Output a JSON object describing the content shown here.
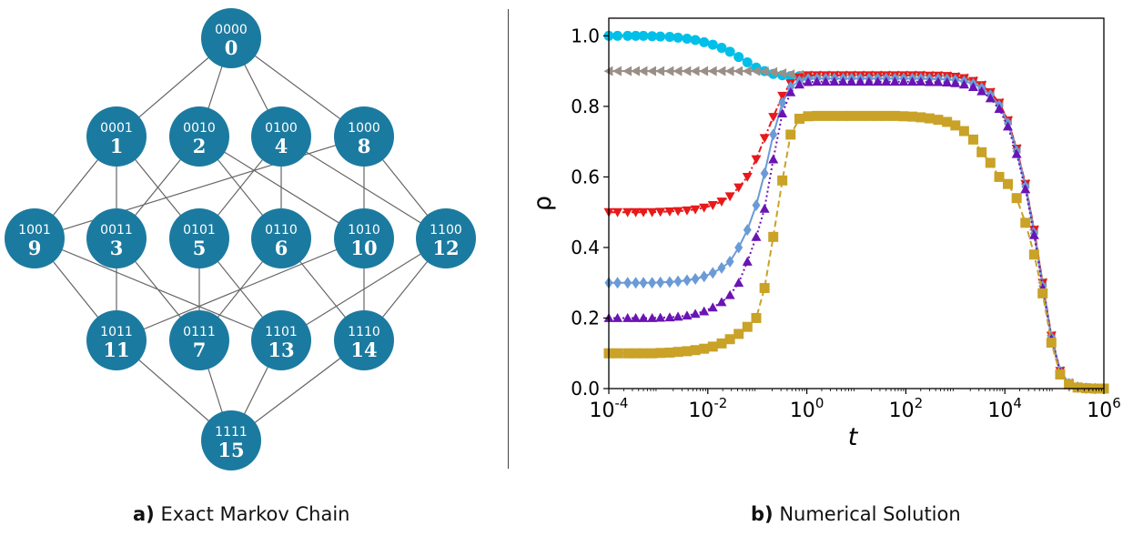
{
  "panel_a": {
    "caption_letter": "a)",
    "caption_text": "Exact Markov Chain",
    "node_color": "#1b7aa0",
    "edge_color": "#666666",
    "nodes": [
      {
        "id": 0,
        "bits": "0000",
        "label": "0"
      },
      {
        "id": 1,
        "bits": "0001",
        "label": "1"
      },
      {
        "id": 2,
        "bits": "0010",
        "label": "2"
      },
      {
        "id": 4,
        "bits": "0100",
        "label": "4"
      },
      {
        "id": 8,
        "bits": "1000",
        "label": "8"
      },
      {
        "id": 9,
        "bits": "1001",
        "label": "9"
      },
      {
        "id": 3,
        "bits": "0011",
        "label": "3"
      },
      {
        "id": 5,
        "bits": "0101",
        "label": "5"
      },
      {
        "id": 6,
        "bits": "0110",
        "label": "6"
      },
      {
        "id": 10,
        "bits": "1010",
        "label": "10"
      },
      {
        "id": 12,
        "bits": "1100",
        "label": "12"
      },
      {
        "id": 11,
        "bits": "1011",
        "label": "11"
      },
      {
        "id": 7,
        "bits": "0111",
        "label": "7"
      },
      {
        "id": 13,
        "bits": "1101",
        "label": "13"
      },
      {
        "id": 14,
        "bits": "1110",
        "label": "14"
      },
      {
        "id": 15,
        "bits": "1111",
        "label": "15"
      }
    ]
  },
  "panel_b": {
    "caption_letter": "b)",
    "caption_text": "Numerical Solution"
  },
  "chart_data": {
    "type": "line",
    "xlabel": "t",
    "ylabel": "ρ",
    "xscale": "log",
    "xlim": [
      0.0001,
      1000000
    ],
    "ylim": [
      0.0,
      1.05
    ],
    "xticks": [
      {
        "value": 0.0001,
        "base": "10",
        "exp": "-4"
      },
      {
        "value": 0.01,
        "base": "10",
        "exp": "-2"
      },
      {
        "value": 1,
        "base": "10",
        "exp": "0"
      },
      {
        "value": 100,
        "base": "10",
        "exp": "2"
      },
      {
        "value": 10000,
        "base": "10",
        "exp": "4"
      },
      {
        "value": 1000000,
        "base": "10",
        "exp": "6"
      }
    ],
    "yticks": [
      "0.0",
      "0.2",
      "0.4",
      "0.6",
      "0.8",
      "1.0"
    ],
    "grid": false,
    "series": [
      {
        "color": "#00bfe8",
        "marker": "circle",
        "line": "solid",
        "x": [
          0.0001,
          0.00015,
          0.00024,
          0.00035,
          0.0005,
          0.00075,
          0.0011,
          0.0017,
          0.0025,
          0.0038,
          0.0056,
          0.0084,
          0.0126,
          0.019,
          0.028,
          0.042,
          0.063,
          0.095,
          0.14,
          0.21,
          0.32,
          0.47,
          0.71,
          1.06
        ],
        "y": [
          1.0,
          1.0,
          1.0,
          1.0,
          1.0,
          0.999,
          0.998,
          0.997,
          0.995,
          0.992,
          0.988,
          0.982,
          0.975,
          0.966,
          0.955,
          0.94,
          0.925,
          0.91,
          0.9,
          0.892,
          0.888,
          0.886,
          0.886,
          0.885
        ]
      },
      {
        "color": "#9a8f87",
        "marker": "triangle-left",
        "line": "solid",
        "x": [
          0.0001,
          0.00015,
          0.00024,
          0.00035,
          0.0005,
          0.00075,
          0.0011,
          0.0017,
          0.0025,
          0.0038,
          0.0056,
          0.0084,
          0.0126,
          0.019,
          0.028,
          0.042,
          0.063,
          0.095,
          0.14,
          0.21,
          0.32,
          0.47,
          0.71,
          1.06,
          1.6,
          2.4,
          3.6,
          5.4,
          8,
          12,
          18,
          27,
          40,
          60,
          90,
          135,
          200,
          300,
          450,
          680,
          1000,
          1500,
          2300,
          3400,
          5100,
          7700,
          11500,
          17300,
          26000,
          39000,
          58000,
          87000,
          131000,
          197000,
          295000,
          440000,
          660000,
          1000000
        ],
        "y": [
          0.9,
          0.9,
          0.9,
          0.9,
          0.9,
          0.9,
          0.9,
          0.9,
          0.9,
          0.9,
          0.9,
          0.9,
          0.9,
          0.9,
          0.9,
          0.9,
          0.9,
          0.9,
          0.899,
          0.897,
          0.894,
          0.891,
          0.889,
          0.888,
          0.888,
          0.888,
          0.888,
          0.888,
          0.888,
          0.888,
          0.888,
          0.888,
          0.888,
          0.888,
          0.888,
          0.888,
          0.888,
          0.887,
          0.887,
          0.886,
          0.884,
          0.88,
          0.872,
          0.86,
          0.84,
          0.81,
          0.76,
          0.68,
          0.58,
          0.45,
          0.3,
          0.15,
          0.05,
          0.015,
          0.004,
          0.001,
          0.0,
          0.0
        ]
      },
      {
        "color": "#e8191a",
        "marker": "triangle-down",
        "line": "dashdot",
        "x": [
          0.0001,
          0.00015,
          0.00024,
          0.00035,
          0.0005,
          0.00075,
          0.0011,
          0.0017,
          0.0025,
          0.0038,
          0.0056,
          0.0084,
          0.0126,
          0.019,
          0.028,
          0.042,
          0.063,
          0.095,
          0.14,
          0.21,
          0.32,
          0.47,
          0.71,
          1.06,
          1.6,
          2.4,
          3.6,
          5.4,
          8,
          12,
          18,
          27,
          40,
          60,
          90,
          135,
          200,
          300,
          450,
          680,
          1000,
          1500,
          2300,
          3400,
          5100,
          7700,
          11500,
          17300,
          26000,
          39000,
          58000,
          87000,
          131000,
          197000,
          295000,
          440000,
          660000,
          1000000
        ],
        "y": [
          0.5,
          0.5,
          0.5,
          0.5,
          0.5,
          0.5,
          0.501,
          0.502,
          0.503,
          0.505,
          0.508,
          0.513,
          0.52,
          0.53,
          0.545,
          0.57,
          0.6,
          0.65,
          0.71,
          0.77,
          0.83,
          0.865,
          0.882,
          0.888,
          0.888,
          0.888,
          0.888,
          0.888,
          0.888,
          0.888,
          0.888,
          0.888,
          0.888,
          0.888,
          0.888,
          0.888,
          0.888,
          0.887,
          0.887,
          0.886,
          0.884,
          0.88,
          0.872,
          0.86,
          0.84,
          0.81,
          0.76,
          0.68,
          0.58,
          0.45,
          0.3,
          0.15,
          0.05,
          0.015,
          0.004,
          0.001,
          0.0,
          0.0
        ]
      },
      {
        "color": "#6b9bd6",
        "marker": "diamond",
        "line": "solid",
        "x": [
          0.0001,
          0.00015,
          0.00024,
          0.00035,
          0.0005,
          0.00075,
          0.0011,
          0.0017,
          0.0025,
          0.0038,
          0.0056,
          0.0084,
          0.0126,
          0.019,
          0.028,
          0.042,
          0.063,
          0.095,
          0.14,
          0.21,
          0.32,
          0.47,
          0.71,
          1.06,
          1.6,
          2.4,
          3.6,
          5.4,
          8,
          12,
          18,
          27,
          40,
          60,
          90,
          135,
          200,
          300,
          450,
          680,
          1000,
          1500,
          2300,
          3400,
          5100,
          7700,
          11500,
          17300,
          26000,
          39000,
          58000,
          87000,
          131000,
          197000,
          295000,
          440000,
          660000,
          1000000
        ],
        "y": [
          0.3,
          0.3,
          0.3,
          0.3,
          0.3,
          0.3,
          0.301,
          0.302,
          0.304,
          0.307,
          0.311,
          0.318,
          0.328,
          0.342,
          0.36,
          0.4,
          0.45,
          0.52,
          0.61,
          0.72,
          0.81,
          0.855,
          0.872,
          0.878,
          0.879,
          0.879,
          0.879,
          0.879,
          0.879,
          0.879,
          0.879,
          0.879,
          0.879,
          0.879,
          0.879,
          0.879,
          0.879,
          0.878,
          0.878,
          0.877,
          0.875,
          0.871,
          0.864,
          0.852,
          0.832,
          0.802,
          0.752,
          0.673,
          0.573,
          0.44,
          0.29,
          0.145,
          0.048,
          0.014,
          0.004,
          0.001,
          0.0,
          0.0
        ]
      },
      {
        "color": "#6a14b4",
        "marker": "triangle-up",
        "line": "dotted",
        "x": [
          0.0001,
          0.00015,
          0.00024,
          0.00035,
          0.0005,
          0.00075,
          0.0011,
          0.0017,
          0.0025,
          0.0038,
          0.0056,
          0.0084,
          0.0126,
          0.019,
          0.028,
          0.042,
          0.063,
          0.095,
          0.14,
          0.21,
          0.32,
          0.47,
          0.71,
          1.06,
          1.6,
          2.4,
          3.6,
          5.4,
          8,
          12,
          18,
          27,
          40,
          60,
          90,
          135,
          200,
          300,
          450,
          680,
          1000,
          1500,
          2300,
          3400,
          5100,
          7700,
          11500,
          17300,
          26000,
          39000,
          58000,
          87000,
          131000,
          197000,
          295000,
          440000,
          660000,
          1000000
        ],
        "y": [
          0.2,
          0.2,
          0.2,
          0.2,
          0.2,
          0.2,
          0.201,
          0.202,
          0.204,
          0.207,
          0.212,
          0.219,
          0.23,
          0.245,
          0.265,
          0.3,
          0.36,
          0.43,
          0.51,
          0.65,
          0.78,
          0.84,
          0.862,
          0.869,
          0.87,
          0.87,
          0.87,
          0.87,
          0.87,
          0.87,
          0.87,
          0.87,
          0.87,
          0.87,
          0.87,
          0.87,
          0.87,
          0.869,
          0.869,
          0.868,
          0.866,
          0.862,
          0.855,
          0.843,
          0.823,
          0.793,
          0.743,
          0.665,
          0.565,
          0.435,
          0.285,
          0.14,
          0.046,
          0.013,
          0.004,
          0.001,
          0.0,
          0.0
        ]
      },
      {
        "color": "#c9a227",
        "marker": "square",
        "line": "dashed",
        "x": [
          0.0001,
          0.00015,
          0.00024,
          0.00035,
          0.0005,
          0.00075,
          0.0011,
          0.0017,
          0.0025,
          0.0038,
          0.0056,
          0.0084,
          0.0126,
          0.019,
          0.028,
          0.042,
          0.063,
          0.095,
          0.14,
          0.21,
          0.32,
          0.47,
          0.71,
          1.06,
          1.6,
          2.4,
          3.6,
          5.4,
          8,
          12,
          18,
          27,
          40,
          60,
          90,
          135,
          200,
          300,
          450,
          680,
          1000,
          1500,
          2300,
          3400,
          5100,
          7700,
          11500,
          17300,
          26000,
          39000,
          58000,
          87000,
          131000,
          197000,
          295000,
          440000,
          660000,
          1000000
        ],
        "y": [
          0.1,
          0.1,
          0.1,
          0.1,
          0.1,
          0.1,
          0.101,
          0.102,
          0.104,
          0.106,
          0.109,
          0.113,
          0.119,
          0.128,
          0.14,
          0.155,
          0.175,
          0.2,
          0.285,
          0.43,
          0.59,
          0.72,
          0.765,
          0.772,
          0.773,
          0.773,
          0.773,
          0.773,
          0.773,
          0.773,
          0.773,
          0.773,
          0.773,
          0.773,
          0.772,
          0.771,
          0.769,
          0.766,
          0.762,
          0.756,
          0.746,
          0.73,
          0.706,
          0.67,
          0.64,
          0.6,
          0.58,
          0.54,
          0.47,
          0.38,
          0.27,
          0.13,
          0.04,
          0.012,
          0.003,
          0.001,
          0.0,
          0.0
        ]
      }
    ]
  }
}
